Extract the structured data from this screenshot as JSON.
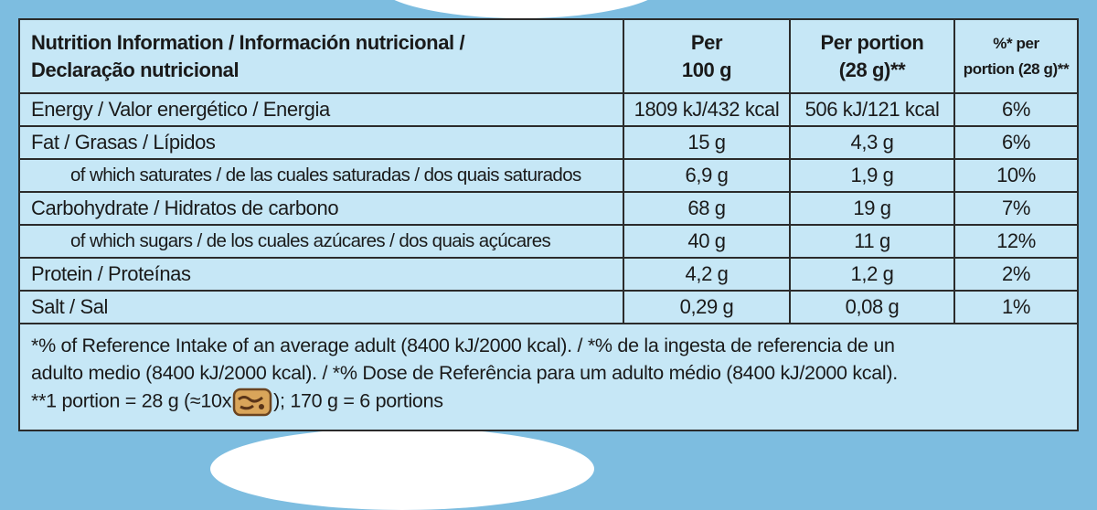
{
  "table": {
    "header": {
      "nutrient": [
        "Nutrition Information / Información nutricional /",
        "Declaração nutricional"
      ],
      "per100": [
        "Per",
        "100 g"
      ],
      "perPortion": [
        "Per portion",
        "(28 g)**"
      ],
      "percent": [
        "%* per",
        "portion (28 g)**"
      ]
    },
    "rows": [
      {
        "label": "Energy / Valor energético / Energia",
        "per100": "1809 kJ/432 kcal",
        "perPortion": "506 kJ/121 kcal",
        "percent": "6%"
      },
      {
        "label": "Fat / Grasas / Lípidos",
        "per100": "15 g",
        "perPortion": "4,3 g",
        "percent": "6%"
      },
      {
        "label": "of which saturates / de las cuales saturadas / dos quais saturados",
        "per100": "6,9 g",
        "perPortion": "1,9 g",
        "percent": "10%"
      },
      {
        "label": "Carbohydrate / Hidratos de carbono",
        "per100": "68 g",
        "perPortion": "19 g",
        "percent": "7%"
      },
      {
        "label": "of which sugars / de los cuales azúcares / dos quais açúcares",
        "per100": "40 g",
        "perPortion": "11 g",
        "percent": "12%"
      },
      {
        "label": "Protein / Proteínas",
        "per100": "4,2 g",
        "perPortion": "1,2 g",
        "percent": "2%"
      },
      {
        "label": "Salt / Sal",
        "per100": "0,29 g",
        "perPortion": "0,08 g",
        "percent": "1%"
      }
    ],
    "footer": {
      "lines": [
        "*% of Reference Intake of an average adult (8400 kJ/2000 kcal). / *% de la ingesta de referencia de un",
        "adulto medio (8400 kJ/2000 kcal). / *% Dose de Referência para um adulto médio (8400 kJ/2000 kcal)."
      ],
      "portionBefore": "**1 portion = 28 g (≈10x",
      "portionAfter": "); 170 g = 6 portions"
    }
  }
}
